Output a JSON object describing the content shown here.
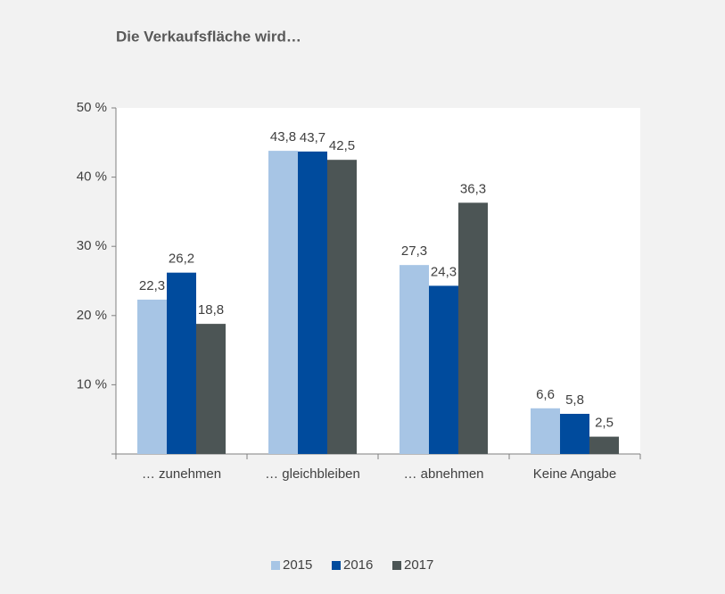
{
  "chart_data": {
    "type": "bar",
    "title": "Die Verkaufsfläche wird…",
    "categories": [
      "… zunehmen",
      "… gleichbleiben",
      "… abnehmen",
      "Keine Angabe"
    ],
    "series": [
      {
        "name": "2015",
        "color": "#a7c5e5",
        "values": [
          22.3,
          43.8,
          27.3,
          6.6
        ],
        "value_labels": [
          "22,3",
          "43,8",
          "27,3",
          "6,6"
        ]
      },
      {
        "name": "2016",
        "color": "#004b9d",
        "values": [
          26.2,
          43.7,
          24.3,
          5.8
        ],
        "value_labels": [
          "26,2",
          "43,7",
          "24,3",
          "5,8"
        ]
      },
      {
        "name": "2017",
        "color": "#4c5555",
        "values": [
          18.8,
          42.5,
          36.3,
          2.5
        ],
        "value_labels": [
          "18,8",
          "42,5",
          "36,3",
          "2,5"
        ]
      }
    ],
    "ylim": [
      0,
      50
    ],
    "yticks": [
      {
        "value": 10,
        "label": "10 %"
      },
      {
        "value": 20,
        "label": "20 %"
      },
      {
        "value": 30,
        "label": "30 %"
      },
      {
        "value": 40,
        "label": "40 %"
      },
      {
        "value": 50,
        "label": "50 %"
      }
    ],
    "grid": false,
    "legend": "bottom"
  }
}
